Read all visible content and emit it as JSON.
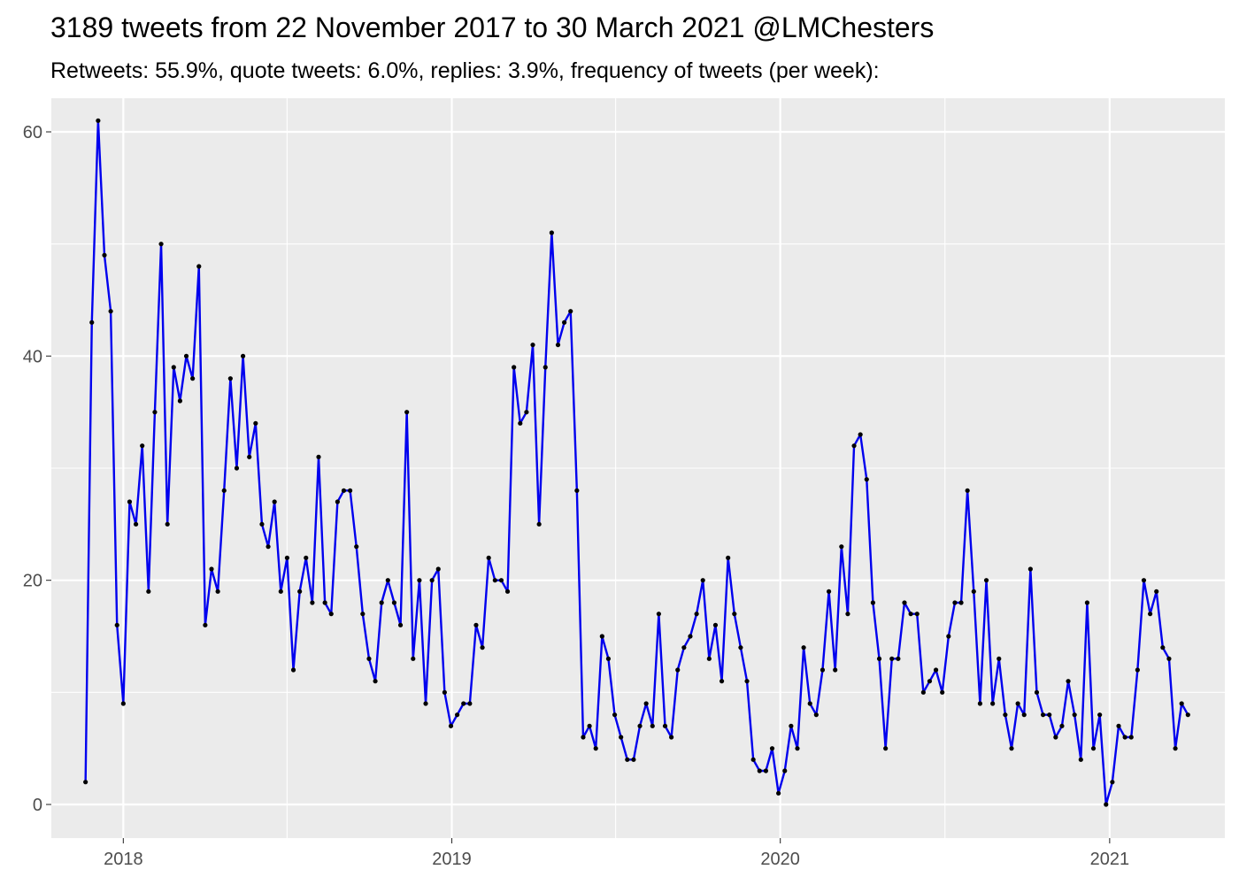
{
  "colors": {
    "panel_background": "#EBEBEB",
    "grid": "#FFFFFF",
    "line": "#0000EE",
    "points": "#000000",
    "axis_text": "#4D4D4D"
  },
  "chart_data": {
    "type": "line",
    "title": "3189 tweets from 22 November 2017 to 30 March 2021 @LMChesters",
    "subtitle": "Retweets: 55.9%, quote tweets: 6.0%, replies: 3.9%, frequency of tweets (per week):",
    "xlabel": "",
    "ylabel": "",
    "x_ticks": [
      "2018",
      "2019",
      "2020",
      "2021"
    ],
    "y_ticks": [
      0,
      20,
      40,
      60
    ],
    "ylim": [
      -3,
      63
    ],
    "xlim": [
      "2017-10-13",
      "2021-05-09"
    ],
    "grid": true,
    "legend": "none",
    "points_shown": true,
    "series": [
      {
        "x": [
          "2017-11-20",
          "2017-11-27",
          "2017-12-04",
          "2017-12-11",
          "2017-12-18",
          "2017-12-25",
          "2018-01-01",
          "2018-01-08",
          "2018-01-15",
          "2018-01-22",
          "2018-01-29",
          "2018-02-05",
          "2018-02-12",
          "2018-02-19",
          "2018-02-26",
          "2018-03-05",
          "2018-03-12",
          "2018-03-19",
          "2018-03-26",
          "2018-04-02",
          "2018-04-09",
          "2018-04-16",
          "2018-04-23",
          "2018-04-30",
          "2018-05-07",
          "2018-05-14",
          "2018-05-21",
          "2018-05-28",
          "2018-06-04",
          "2018-06-11",
          "2018-06-18",
          "2018-06-25",
          "2018-07-02",
          "2018-07-09",
          "2018-07-16",
          "2018-07-23",
          "2018-07-30",
          "2018-08-06",
          "2018-08-13",
          "2018-08-20",
          "2018-08-27",
          "2018-09-03",
          "2018-09-10",
          "2018-09-17",
          "2018-09-24",
          "2018-10-01",
          "2018-10-08",
          "2018-10-15",
          "2018-10-22",
          "2018-10-29",
          "2018-11-05",
          "2018-11-12",
          "2018-11-19",
          "2018-11-26",
          "2018-12-03",
          "2018-12-10",
          "2018-12-17",
          "2018-12-24",
          "2018-12-31",
          "2019-01-07",
          "2019-01-14",
          "2019-01-21",
          "2019-01-28",
          "2019-02-04",
          "2019-02-11",
          "2019-02-18",
          "2019-02-25",
          "2019-03-04",
          "2019-03-11",
          "2019-03-18",
          "2019-03-25",
          "2019-04-01",
          "2019-04-08",
          "2019-04-15",
          "2019-04-22",
          "2019-04-29",
          "2019-05-06",
          "2019-05-13",
          "2019-05-20",
          "2019-05-27",
          "2019-06-03",
          "2019-06-10",
          "2019-06-17",
          "2019-06-24",
          "2019-07-01",
          "2019-07-08",
          "2019-07-15",
          "2019-07-22",
          "2019-07-29",
          "2019-08-05",
          "2019-08-12",
          "2019-08-19",
          "2019-08-26",
          "2019-09-02",
          "2019-09-09",
          "2019-09-16",
          "2019-09-23",
          "2019-09-30",
          "2019-10-07",
          "2019-10-14",
          "2019-10-21",
          "2019-10-28",
          "2019-11-04",
          "2019-11-11",
          "2019-11-18",
          "2019-11-25",
          "2019-12-02",
          "2019-12-09",
          "2019-12-16",
          "2019-12-23",
          "2019-12-30",
          "2020-01-06",
          "2020-01-13",
          "2020-01-20",
          "2020-01-27",
          "2020-02-03",
          "2020-02-10",
          "2020-02-17",
          "2020-02-24",
          "2020-03-02",
          "2020-03-09",
          "2020-03-16",
          "2020-03-23",
          "2020-03-30",
          "2020-04-06",
          "2020-04-13",
          "2020-04-20",
          "2020-04-27",
          "2020-05-04",
          "2020-05-11",
          "2020-05-18",
          "2020-05-25",
          "2020-06-01",
          "2020-06-08",
          "2020-06-15",
          "2020-06-22",
          "2020-06-29",
          "2020-07-06",
          "2020-07-13",
          "2020-07-20",
          "2020-07-27",
          "2020-08-03",
          "2020-08-10",
          "2020-08-17",
          "2020-08-24",
          "2020-08-31",
          "2020-09-07",
          "2020-09-14",
          "2020-09-21",
          "2020-09-28",
          "2020-10-05",
          "2020-10-12",
          "2020-10-19",
          "2020-10-26",
          "2020-11-02",
          "2020-11-09",
          "2020-11-16",
          "2020-11-23",
          "2020-11-30",
          "2020-12-07",
          "2020-12-14",
          "2020-12-21",
          "2020-12-28",
          "2021-01-04",
          "2021-01-11",
          "2021-01-18",
          "2021-01-25",
          "2021-02-01",
          "2021-02-08",
          "2021-02-15",
          "2021-02-22",
          "2021-03-01",
          "2021-03-08",
          "2021-03-15",
          "2021-03-22",
          "2021-03-29"
        ],
        "values": [
          2,
          43,
          61,
          49,
          44,
          16,
          9,
          27,
          25,
          32,
          19,
          35,
          50,
          25,
          39,
          36,
          40,
          38,
          48,
          16,
          21,
          19,
          28,
          38,
          30,
          40,
          31,
          34,
          25,
          23,
          27,
          19,
          22,
          12,
          19,
          22,
          18,
          31,
          18,
          17,
          27,
          28,
          28,
          23,
          17,
          13,
          11,
          18,
          20,
          18,
          16,
          35,
          13,
          20,
          9,
          20,
          21,
          10,
          7,
          8,
          9,
          9,
          16,
          14,
          22,
          20,
          20,
          19,
          39,
          34,
          35,
          41,
          25,
          39,
          51,
          41,
          43,
          44,
          28,
          6,
          7,
          5,
          15,
          13,
          8,
          6,
          4,
          4,
          7,
          9,
          7,
          17,
          7,
          6,
          12,
          14,
          15,
          17,
          20,
          13,
          16,
          11,
          22,
          17,
          14,
          11,
          4,
          3,
          3,
          5,
          1,
          3,
          7,
          5,
          14,
          9,
          8,
          12,
          19,
          12,
          23,
          17,
          32,
          33,
          29,
          18,
          13,
          5,
          13,
          13,
          18,
          17,
          17,
          10,
          11,
          12,
          10,
          15,
          18,
          18,
          28,
          19,
          9,
          20,
          9,
          13,
          8,
          5,
          9,
          8,
          21,
          10,
          8,
          8,
          6,
          7,
          11,
          8,
          4,
          18,
          5,
          8,
          0,
          2,
          7,
          6,
          6,
          12,
          20,
          17,
          19,
          14,
          13,
          5,
          9,
          8
        ]
      }
    ]
  }
}
